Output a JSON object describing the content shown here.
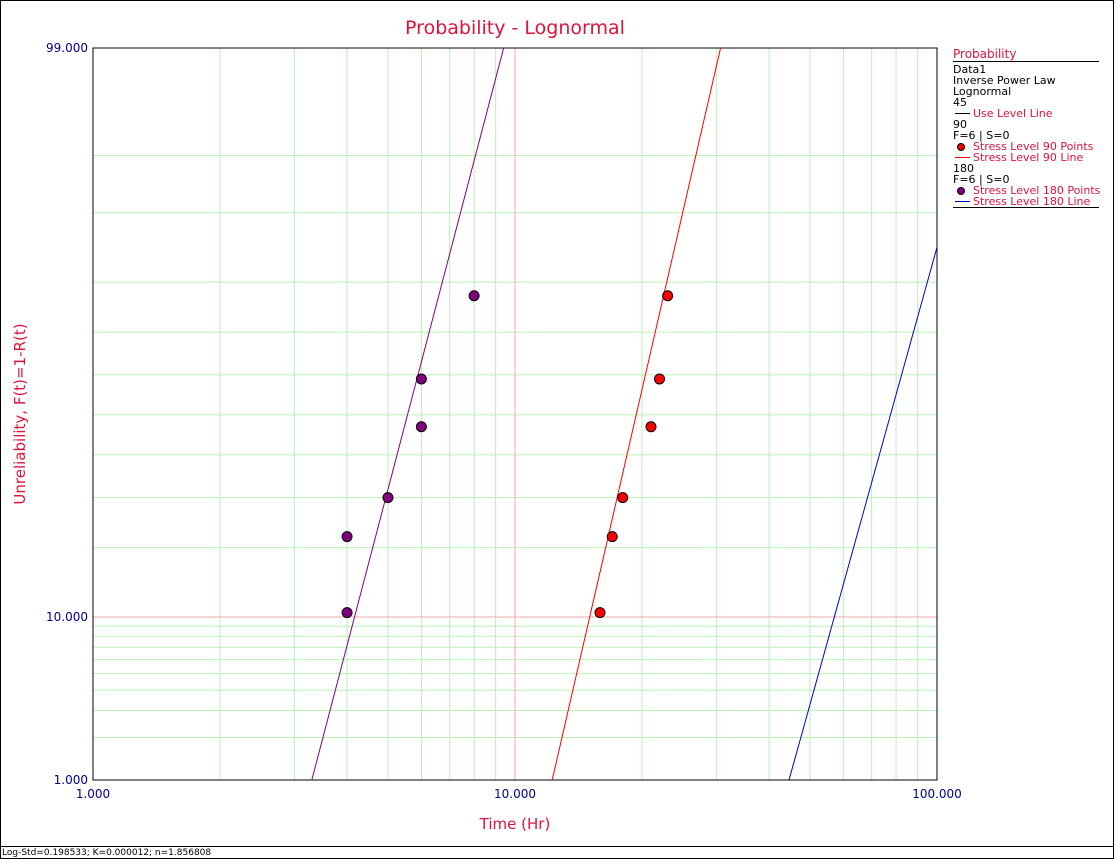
{
  "colors": {
    "title": "#dc143c",
    "axis_label": "#dc143c",
    "tick_label": "#00008b",
    "grid_minor": "#b8f0b8",
    "grid_major": "#f0a8a8",
    "series_45": "#0000cd",
    "series_90": "#ff0000",
    "series_180": "#800080"
  },
  "chart_data": {
    "type": "scatter",
    "title": "Probability - Lognormal",
    "xlabel": "Time (Hr)",
    "ylabel": "Unreliability, F(t)=1-R(t)",
    "x_scale": "log",
    "y_scale": "lognormal-probability",
    "xlim": [
      1,
      100
    ],
    "ylim": [
      1,
      99
    ],
    "x_ticks": [
      "1.000",
      "10.000",
      "100.000"
    ],
    "y_ticks": [
      "1.000",
      "10.000",
      "99.000"
    ],
    "grid": true,
    "legend_position": "right",
    "series": [
      {
        "name": "Use Level Line",
        "kind": "line",
        "color": "#0000cd",
        "points": [
          [
            44.6,
            1
          ],
          [
            100,
            85.6
          ]
        ]
      },
      {
        "name": "Stress Level 90 Points",
        "kind": "points",
        "color": "#ff0000",
        "points": [
          [
            15.9,
            10.5
          ],
          [
            17.0,
            22.0
          ],
          [
            18.0,
            30.0
          ],
          [
            21.0,
            47.0
          ],
          [
            22.0,
            59.0
          ],
          [
            23.0,
            77.5
          ]
        ]
      },
      {
        "name": "Stress Level 90 Line",
        "kind": "line",
        "color": "#ff0000",
        "points": [
          [
            12.25,
            1
          ],
          [
            30.7,
            99
          ]
        ]
      },
      {
        "name": "Stress Level 180 Points",
        "kind": "points",
        "color": "#800080",
        "points": [
          [
            4.0,
            10.5
          ],
          [
            4.0,
            22.0
          ],
          [
            5.0,
            30.0
          ],
          [
            6.0,
            47.0
          ],
          [
            6.0,
            59.0
          ],
          [
            8.0,
            77.5
          ]
        ]
      },
      {
        "name": "Stress Level 180 Line",
        "kind": "line",
        "color": "#800080",
        "points": [
          [
            3.3,
            1
          ],
          [
            9.4,
            99
          ]
        ]
      }
    ]
  },
  "legend": {
    "title": "Probability",
    "data_name": "Data1",
    "model": "Inverse Power Law",
    "distribution": "Lognormal",
    "groups": [
      {
        "level": "45",
        "info": "",
        "items": [
          {
            "label": "Use Level Line",
            "symbol": "line",
            "color": "#000000"
          }
        ]
      },
      {
        "level": "90",
        "info": "F=6 | S=0",
        "items": [
          {
            "label": "Stress Level 90 Points",
            "symbol": "dot",
            "color": "#ff0000"
          },
          {
            "label": "Stress Level 90 Line",
            "symbol": "line",
            "color": "#ff0000"
          }
        ]
      },
      {
        "level": "180",
        "info": "F=6 | S=0",
        "items": [
          {
            "label": "Stress Level 180 Points",
            "symbol": "dot",
            "color": "#800080"
          },
          {
            "label": "Stress Level 180 Line",
            "symbol": "line",
            "color": "#0000cd"
          }
        ]
      }
    ]
  },
  "status_bar": {
    "text": "Log-Std=0.198533; K=0.000012; n=1.856808"
  }
}
